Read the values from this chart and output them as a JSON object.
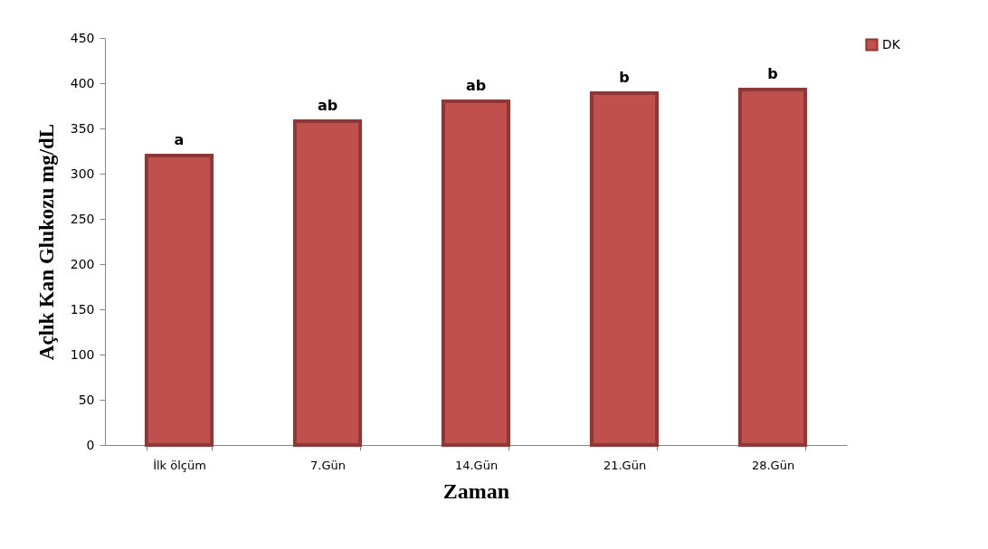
{
  "chart_data": {
    "type": "bar",
    "xlabel": "Zaman",
    "ylabel": "Açlık Kan Glukozu mg/dL",
    "categories": [
      "İlk ölçüm",
      "7.Gün",
      "14.Gün",
      "21.Gün",
      "28.Gün"
    ],
    "series": [
      {
        "name": "DK",
        "color": "#c0504d",
        "values": [
          320,
          358,
          380,
          389,
          393
        ]
      }
    ],
    "ylim": [
      0,
      450
    ],
    "yticks": [
      0,
      50,
      100,
      150,
      200,
      250,
      300,
      350,
      400,
      450
    ],
    "grid": false,
    "legend": "right",
    "annotations": [
      {
        "text": "a",
        "x": "İlk ölçüm",
        "y": 320
      },
      {
        "text": "ab",
        "x": "7.Gün",
        "y": 358
      },
      {
        "text": "ab",
        "x": "14.Gün",
        "y": 380
      },
      {
        "text": "b",
        "x": "21.Gün",
        "y": 389
      },
      {
        "text": "b",
        "x": "28.Gün",
        "y": 393
      }
    ]
  }
}
